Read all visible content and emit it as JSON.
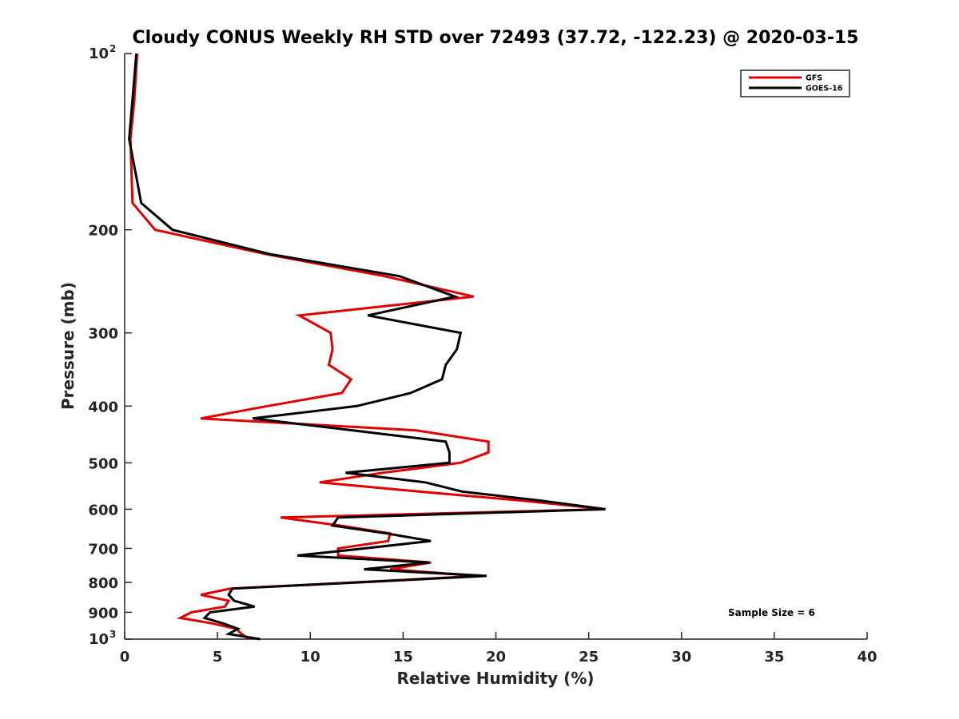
{
  "chart_data": {
    "type": "line",
    "title": "Cloudy CONUS Weekly RH STD over 72493 (37.72, -122.23) @ 2020-03-15",
    "xlabel": "Relative Humidity (%)",
    "ylabel": "Pressure (mb)",
    "xlim": [
      0,
      40
    ],
    "ylim": [
      100,
      1000
    ],
    "yscale": "log",
    "y_reversed": true,
    "grid": false,
    "xticks": [
      0,
      5,
      10,
      15,
      20,
      25,
      30,
      35,
      40
    ],
    "xtick_labels": [
      "0",
      "5",
      "10",
      "15",
      "20",
      "25",
      "30",
      "35",
      "40"
    ],
    "yticks": [
      100,
      200,
      300,
      400,
      500,
      600,
      700,
      800,
      900,
      1000
    ],
    "ytick_labels": [
      {
        "base": "10",
        "sup": "2"
      },
      {
        "base": "200",
        "sup": ""
      },
      {
        "base": "300",
        "sup": ""
      },
      {
        "base": "400",
        "sup": ""
      },
      {
        "base": "500",
        "sup": ""
      },
      {
        "base": "600",
        "sup": ""
      },
      {
        "base": "700",
        "sup": ""
      },
      {
        "base": "800",
        "sup": ""
      },
      {
        "base": "900",
        "sup": ""
      },
      {
        "base": "10",
        "sup": "3"
      }
    ],
    "legend_position": "top-right",
    "annotation": "Sample Size = 6",
    "pressure": [
      100,
      120,
      140,
      160,
      180,
      200,
      220,
      240,
      260,
      280,
      300,
      320,
      340,
      360,
      380,
      400,
      420,
      440,
      460,
      480,
      500,
      520,
      540,
      560,
      580,
      600,
      620,
      640,
      660,
      680,
      700,
      720,
      740,
      760,
      780,
      800,
      820,
      840,
      860,
      880,
      900,
      920,
      940,
      960,
      980,
      1000
    ],
    "series": [
      {
        "name": "GFS",
        "color": "#e00000",
        "values": [
          0.67,
          0.52,
          0.31,
          0.37,
          0.42,
          1.64,
          7.6,
          14.0,
          18.8,
          9.4,
          11.1,
          11.2,
          11.0,
          12.2,
          11.7,
          7.7,
          4.1,
          15.7,
          19.6,
          19.6,
          18.1,
          13.9,
          10.5,
          15.9,
          21.4,
          25.9,
          8.4,
          11.6,
          14.3,
          14.2,
          11.5,
          11.5,
          16.5,
          14.3,
          19.1,
          12.4,
          5.7,
          4.1,
          5.6,
          5.4,
          3.6,
          3.0,
          4.7,
          6.0,
          6.3,
          6.7
        ]
      },
      {
        "name": "GOES-16",
        "color": "#000000",
        "values": [
          0.63,
          0.42,
          0.24,
          0.59,
          0.89,
          2.58,
          7.8,
          14.8,
          17.8,
          13.1,
          18.1,
          17.9,
          17.3,
          17.1,
          15.4,
          12.5,
          6.9,
          12.3,
          17.3,
          17.5,
          17.5,
          11.9,
          16.2,
          18.2,
          22.4,
          25.9,
          11.5,
          11.2,
          14.1,
          16.5,
          12.9,
          9.3,
          16.4,
          12.9,
          19.5,
          12.6,
          5.8,
          5.6,
          5.9,
          7.0,
          4.6,
          4.3,
          5.3,
          6.1,
          5.6,
          7.3
        ]
      }
    ]
  }
}
